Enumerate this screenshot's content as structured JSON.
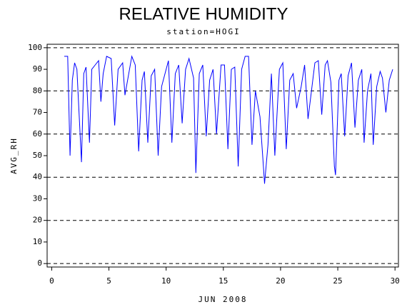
{
  "chart_data": {
    "type": "line",
    "title": "RELATIVE HUMIDITY",
    "subtitle": "station=HOGI",
    "x_label": "JUN 2008",
    "y_label": "AVG_RH",
    "xlim": [
      -0.4,
      30.3
    ],
    "ylim": [
      -1.6,
      101.6
    ],
    "xticks": [
      0,
      5,
      10,
      15,
      20,
      25,
      30
    ],
    "yticks": [
      0,
      10,
      20,
      30,
      40,
      50,
      60,
      70,
      80,
      90,
      100
    ],
    "grid_lines": [
      0,
      20,
      40,
      60,
      80,
      100
    ],
    "x": [
      1.1,
      1.4,
      1.6,
      1.8,
      2.0,
      2.2,
      2.6,
      2.8,
      3.0,
      3.3,
      3.5,
      3.8,
      4.1,
      4.3,
      4.5,
      4.8,
      5.2,
      5.5,
      5.8,
      6.2,
      6.4,
      6.7,
      7.0,
      7.3,
      7.6,
      7.9,
      8.1,
      8.4,
      8.7,
      9.0,
      9.3,
      9.6,
      9.9,
      10.2,
      10.5,
      10.8,
      11.1,
      11.4,
      11.7,
      12.0,
      12.4,
      12.6,
      12.9,
      13.2,
      13.5,
      13.8,
      14.1,
      14.4,
      14.8,
      15.1,
      15.4,
      15.7,
      16.0,
      16.3,
      16.6,
      16.9,
      17.2,
      17.5,
      17.8,
      18.2,
      18.5,
      18.6,
      18.9,
      19.2,
      19.5,
      19.9,
      20.2,
      20.5,
      20.8,
      21.1,
      21.4,
      21.8,
      22.1,
      22.4,
      22.7,
      23.0,
      23.3,
      23.6,
      23.9,
      24.1,
      24.4,
      24.7,
      24.8,
      25.1,
      25.3,
      25.6,
      25.9,
      26.2,
      26.5,
      26.8,
      27.1,
      27.3,
      27.6,
      27.9,
      28.1,
      28.4,
      28.7,
      28.9,
      29.2,
      29.5,
      29.8
    ],
    "series": [
      {
        "name": "AVG_RH",
        "color": "#0000ff",
        "values": [
          96,
          96,
          50,
          85,
          93,
          90,
          47,
          88,
          91,
          56,
          90,
          92,
          94,
          75,
          88,
          96,
          95,
          64,
          90,
          93,
          78,
          87,
          96,
          92,
          52,
          85,
          89,
          56,
          87,
          90,
          50,
          82,
          88,
          94,
          56,
          88,
          92,
          65,
          90,
          95,
          86,
          42,
          88,
          92,
          59,
          85,
          90,
          60,
          92,
          92,
          53,
          90,
          91,
          45,
          90,
          96,
          96,
          55,
          80,
          68,
          45,
          37,
          55,
          88,
          50,
          90,
          93,
          53,
          85,
          88,
          72,
          82,
          92,
          67,
          80,
          93,
          94,
          69,
          92,
          94,
          84,
          45,
          41,
          85,
          88,
          59,
          87,
          93,
          63,
          85,
          90,
          56,
          80,
          88,
          55,
          82,
          89,
          86,
          70,
          85,
          90
        ]
      }
    ]
  }
}
